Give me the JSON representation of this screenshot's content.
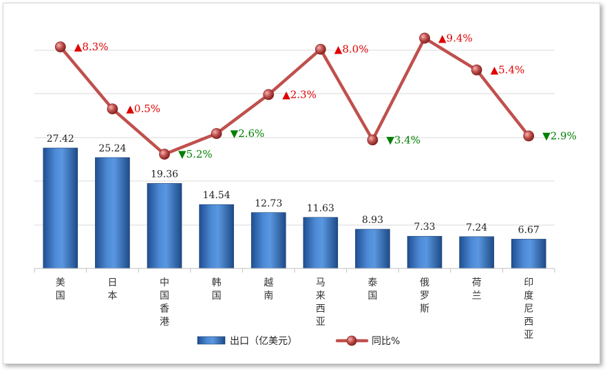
{
  "chart_data": {
    "type": "bar+line",
    "categories": [
      "美国",
      "日本",
      "中国香港",
      "韩国",
      "越南",
      "马来西亚",
      "泰国",
      "俄罗斯",
      "荷兰",
      "印度尼西亚"
    ],
    "series": [
      {
        "name": "出口（亿美元）",
        "type": "bar",
        "color": "#3b74bf",
        "values": [
          27.42,
          25.24,
          19.36,
          14.54,
          12.73,
          11.63,
          8.93,
          7.33,
          7.24,
          6.67
        ]
      },
      {
        "name": "同比%",
        "type": "line",
        "color": "#c0504d",
        "values": [
          8.3,
          0.5,
          -5.2,
          -2.6,
          2.3,
          8.0,
          -3.4,
          9.4,
          5.4,
          -2.9
        ],
        "labels": [
          "▲8.3%",
          "▲0.5%",
          "▼5.2%",
          "▼2.6%",
          "▲2.3%",
          "▲8.0%",
          "▼3.4%",
          "▲9.4%",
          "▲5.4%",
          "▼2.9%"
        ]
      }
    ],
    "legend": {
      "position": "bottom",
      "items": [
        "出口（亿美元）",
        "同比%"
      ]
    },
    "grid": true,
    "up_color": "#e00000",
    "down_color": "#008000"
  }
}
